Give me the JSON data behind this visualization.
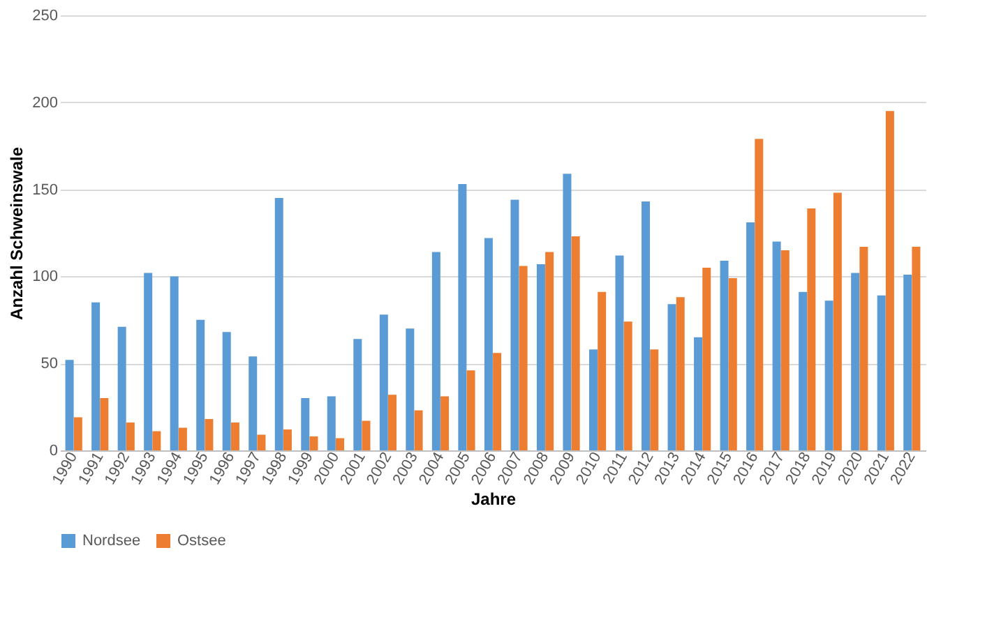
{
  "chart_data": {
    "type": "bar",
    "xlabel": "Jahre",
    "ylabel": "Anzahl Schweinswale",
    "categories": [
      "1990",
      "1991",
      "1992",
      "1993",
      "1994",
      "1995",
      "1996",
      "1997",
      "1998",
      "1999",
      "2000",
      "2001",
      "2002",
      "2003",
      "2004",
      "2005",
      "2006",
      "2007",
      "2008",
      "2009",
      "2010",
      "2011",
      "2012",
      "2013",
      "2014",
      "2015",
      "2016",
      "2017",
      "2018",
      "2019",
      "2020",
      "2021",
      "2022"
    ],
    "series": [
      {
        "name": "Nordsee",
        "color": "#5b9bd5",
        "values": [
          52,
          85,
          71,
          102,
          100,
          75,
          68,
          54,
          145,
          30,
          31,
          64,
          78,
          70,
          114,
          153,
          122,
          144,
          107,
          159,
          58,
          112,
          143,
          84,
          65,
          109,
          131,
          120,
          91,
          86,
          102,
          89,
          101
        ]
      },
      {
        "name": "Ostsee",
        "color": "#ed7d31",
        "values": [
          19,
          30,
          16,
          11,
          13,
          18,
          16,
          9,
          12,
          8,
          7,
          17,
          32,
          23,
          31,
          46,
          56,
          106,
          114,
          123,
          91,
          74,
          58,
          88,
          105,
          99,
          179,
          115,
          139,
          148,
          117,
          195,
          117
        ]
      }
    ],
    "ylim": [
      0,
      250
    ],
    "yticks": [
      0,
      50,
      100,
      150,
      200,
      250
    ],
    "grid": "y",
    "legend": "bottom"
  }
}
